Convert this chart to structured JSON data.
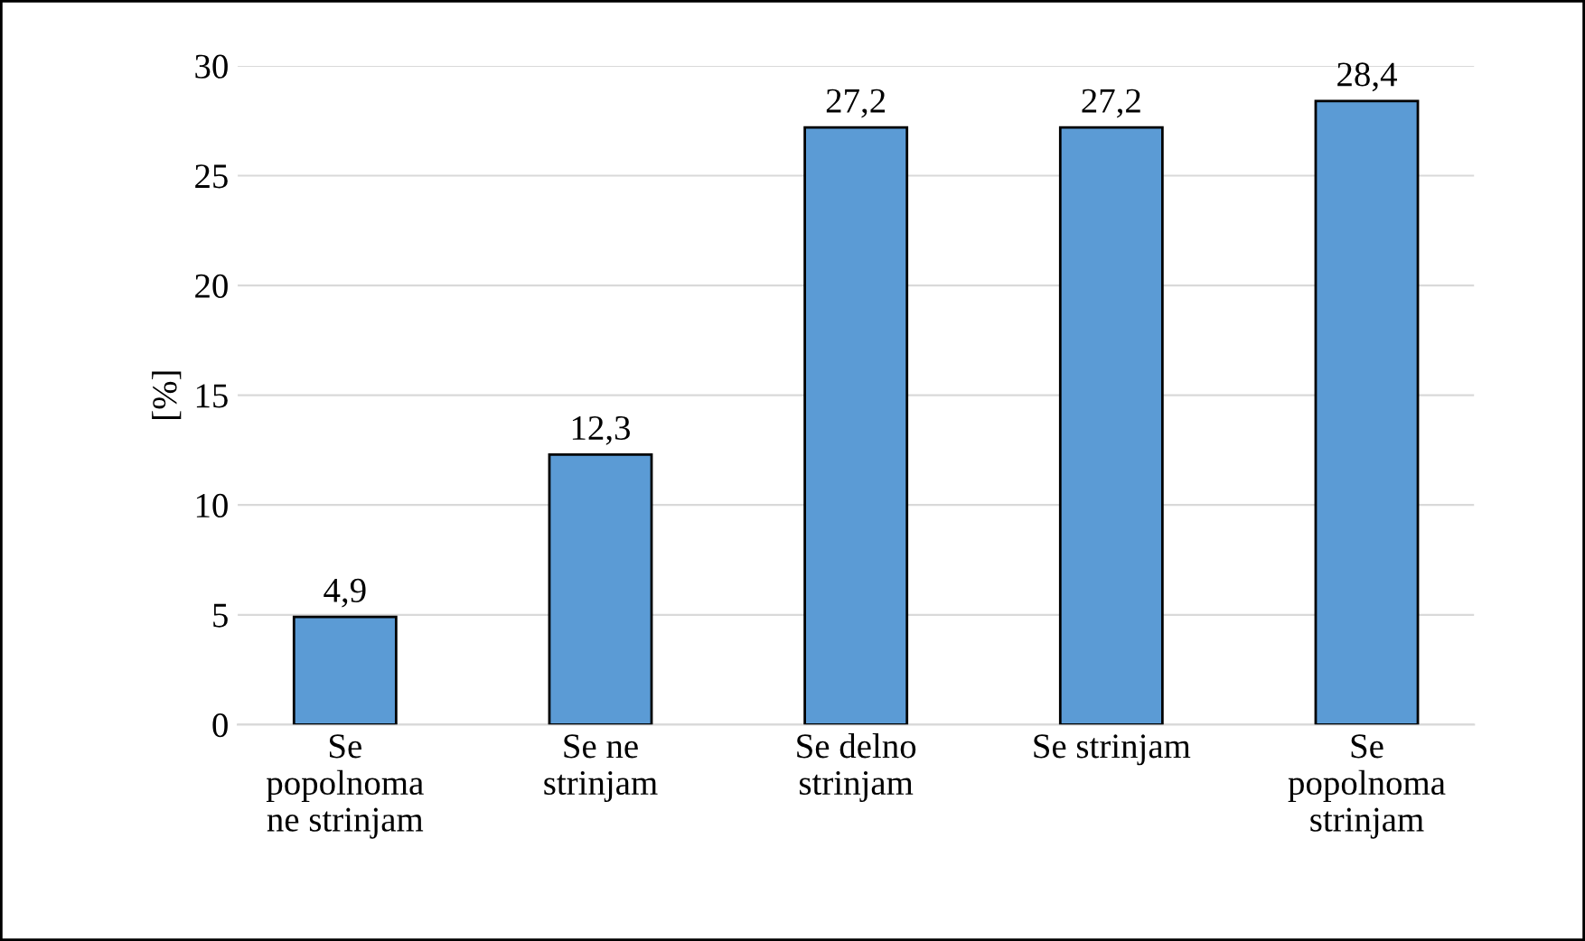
{
  "chart_data": {
    "type": "bar",
    "ylabel": "[%]",
    "categories": [
      "Se\npopolnoma\nne strinjam",
      "Se ne\nstrinjam",
      "Se delno\nstrinjam",
      "Se strinjam",
      "Se\npopolnoma\nstrinjam"
    ],
    "values": [
      4.9,
      12.3,
      27.2,
      27.2,
      28.4
    ],
    "value_labels": [
      "4,9",
      "12,3",
      "27,2",
      "27,2",
      "28,4"
    ],
    "color": "#5b9bd5",
    "ylim": [
      0,
      30
    ],
    "yticks": [
      0,
      5,
      10,
      15,
      20,
      25,
      30
    ],
    "grid": "y"
  }
}
